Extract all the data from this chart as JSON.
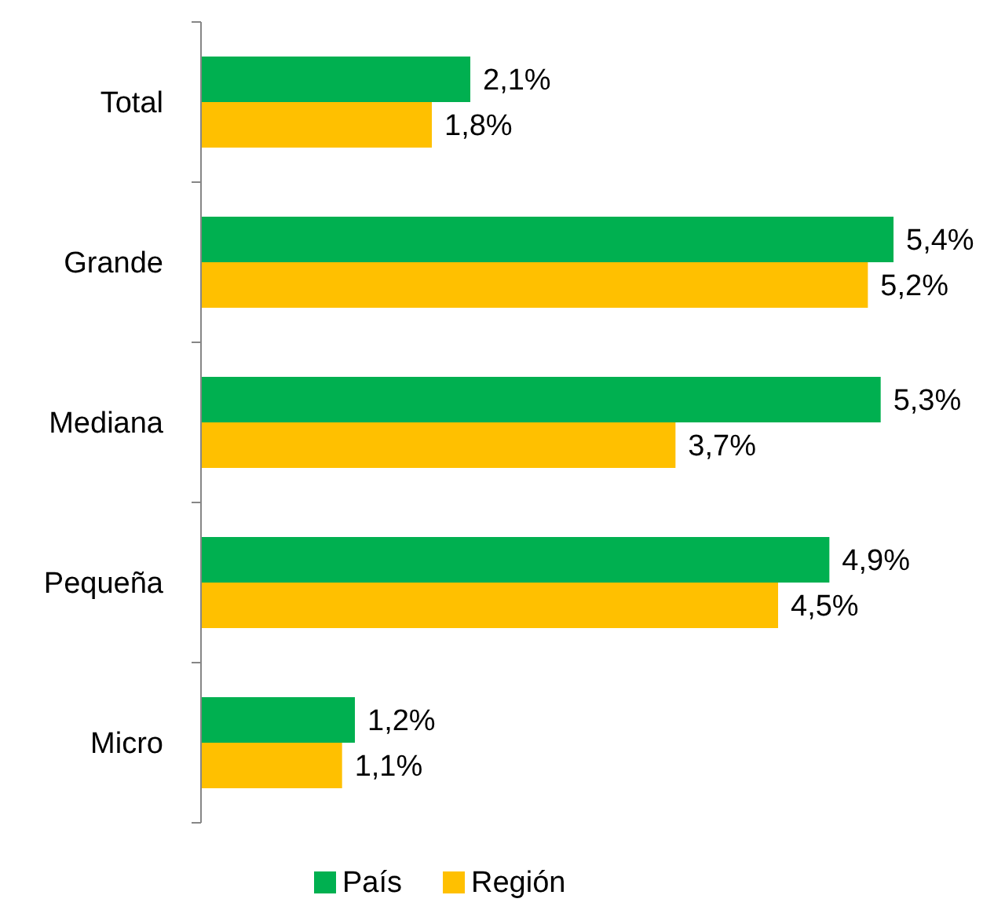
{
  "chart_data": {
    "type": "bar",
    "orientation": "horizontal",
    "categories": [
      "Total",
      "Grande",
      "Mediana",
      "Pequeña",
      "Micro"
    ],
    "series": [
      {
        "name": "País",
        "color": "#00b050",
        "values": [
          2.1,
          5.4,
          5.3,
          4.9,
          1.2
        ],
        "value_labels": [
          "2,1%",
          "5,4%",
          "5,3%",
          "4,9%",
          "1,2%"
        ]
      },
      {
        "name": "Región",
        "color": "#ffc000",
        "values": [
          1.8,
          5.2,
          3.7,
          4.5,
          1.1
        ],
        "value_labels": [
          "1,8%",
          "5,2%",
          "3,7%",
          "4,5%",
          "1,1%"
        ]
      }
    ],
    "legend": "bottom"
  }
}
